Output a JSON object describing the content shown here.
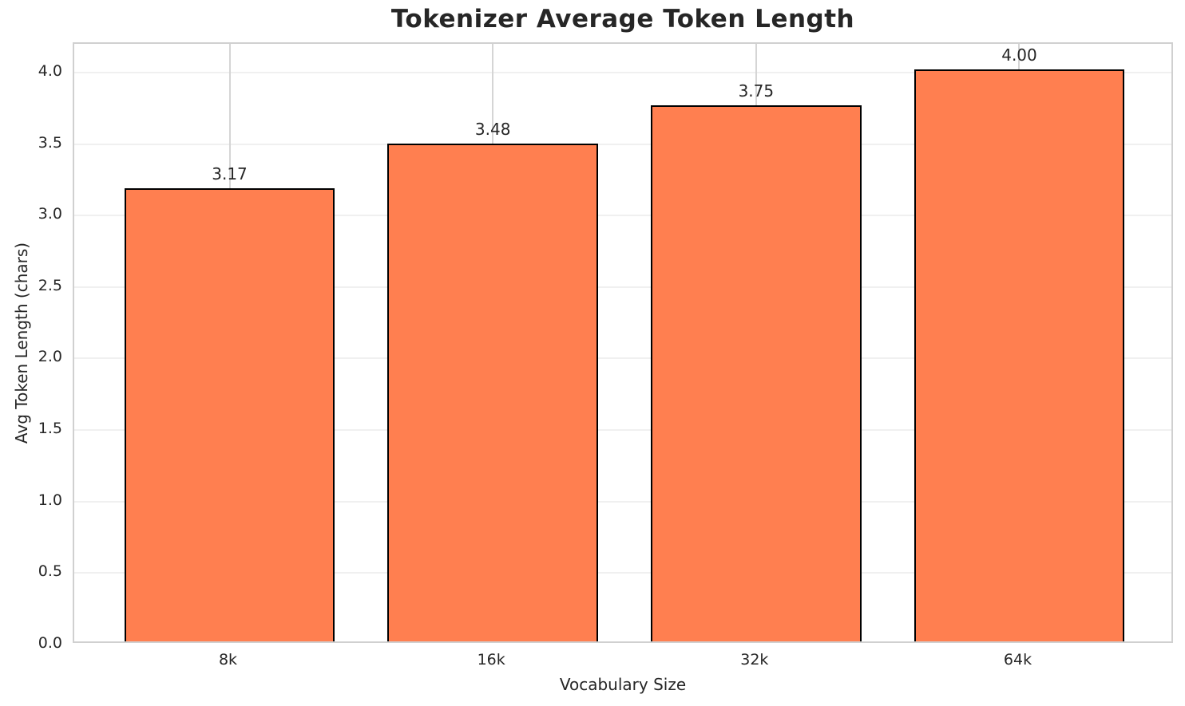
{
  "chart_data": {
    "type": "bar",
    "title": "Tokenizer Average Token Length",
    "xlabel": "Vocabulary Size",
    "ylabel": "Avg Token Length (chars)",
    "categories": [
      "8k",
      "16k",
      "32k",
      "64k"
    ],
    "values": [
      3.17,
      3.48,
      3.75,
      4.0
    ],
    "value_labels": [
      "3.17",
      "3.48",
      "3.75",
      "4.00"
    ],
    "ytick_values": [
      0.0,
      0.5,
      1.0,
      1.5,
      2.0,
      2.5,
      3.0,
      3.5,
      4.0
    ],
    "ytick_labels": [
      "0.0",
      "0.5",
      "1.0",
      "1.5",
      "2.0",
      "2.5",
      "3.0",
      "3.5",
      "4.0"
    ],
    "ylim": [
      0,
      4.2
    ],
    "grid": true,
    "legend": null,
    "bar_color": "#ff7f50",
    "bar_edge_color": "#000000",
    "hgrid_color": "#f0f0f0",
    "vgrid_color": "#d5d5d5",
    "frame_color": "#d0d0d0",
    "text_color": "#262626"
  }
}
